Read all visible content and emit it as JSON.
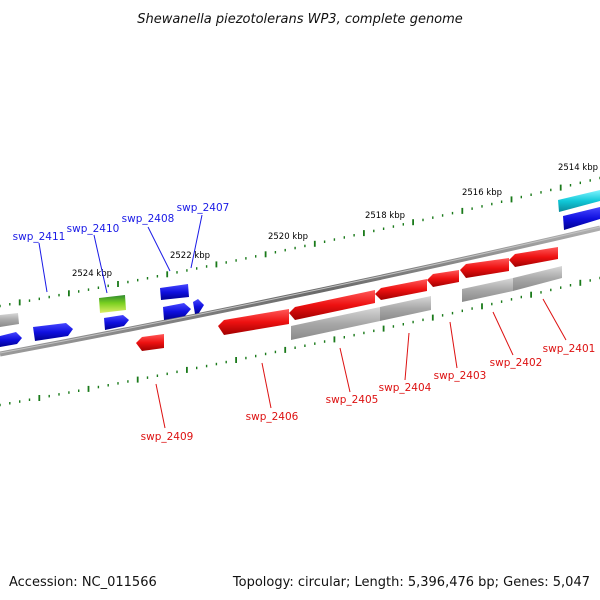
{
  "title": "Shewanella piezotolerans WP3, complete genome",
  "footer": {
    "accession": "Accession: NC_011566",
    "summary": "Topology: circular; Length: 5,396,476 bp; Genes: 5,047"
  },
  "colors": {
    "forward_gene": "#1010e0",
    "reverse_gene": "#ee1111",
    "pseudo_gene": "#a8a8a8",
    "rna_gene": "#44aa22",
    "cyan_gene": "#10c8d8",
    "tick": "#1a7a1a",
    "backbone": "#7a7a7a",
    "forward_label": "#1a1ae6",
    "reverse_label": "#dd1111"
  },
  "scale_labels": [
    "2514 kbp",
    "2516 kbp",
    "2518 kbp",
    "2520 kbp",
    "2522 kbp",
    "2524 kbp"
  ],
  "forward_genes": [
    "swp_2411",
    "swp_2410",
    "swp_2408",
    "swp_2407"
  ],
  "reverse_genes": [
    "swp_2409",
    "swp_2406",
    "swp_2405",
    "swp_2404",
    "swp_2403",
    "swp_2402",
    "swp_2401"
  ]
}
